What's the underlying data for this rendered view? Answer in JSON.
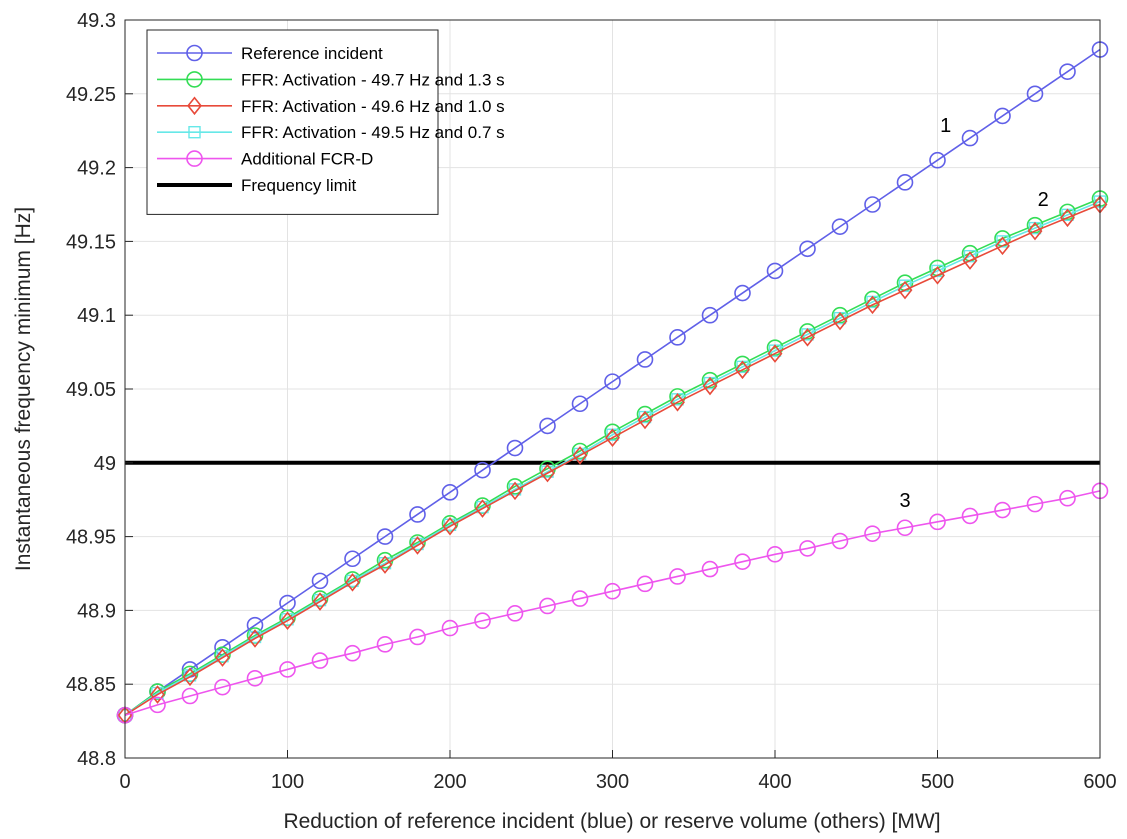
{
  "chart_data": {
    "type": "line",
    "title": "",
    "xlabel": "Reduction of reference incident (blue) or reserve volume (others) [MW]",
    "ylabel": "Instantaneous frequency minimum [Hz]",
    "xlim": [
      0,
      600
    ],
    "ylim": [
      48.8,
      49.3
    ],
    "xticks": [
      0,
      100,
      200,
      300,
      400,
      500,
      600
    ],
    "yticks": [
      48.8,
      48.85,
      48.9,
      48.95,
      49,
      49.05,
      49.1,
      49.15,
      49.2,
      49.25,
      49.3
    ],
    "xtick_labels": [
      "0",
      "100",
      "200",
      "300",
      "400",
      "500",
      "600"
    ],
    "ytick_labels": [
      "48.8",
      "48.85",
      "48.9",
      "48.95",
      "49",
      "49.05",
      "49.1",
      "49.15",
      "49.2",
      "49.25",
      "49.3"
    ],
    "grid": true,
    "legend_position": "top-left",
    "x": [
      0,
      20,
      40,
      60,
      80,
      100,
      120,
      140,
      160,
      180,
      200,
      220,
      240,
      260,
      280,
      300,
      320,
      340,
      360,
      380,
      400,
      420,
      440,
      460,
      480,
      500,
      520,
      540,
      560,
      580,
      600
    ],
    "series": [
      {
        "name": "Reference incident",
        "color": "#6060e8",
        "marker": "circle",
        "values": [
          48.829,
          48.845,
          48.86,
          48.875,
          48.89,
          48.905,
          48.92,
          48.935,
          48.95,
          48.965,
          48.98,
          48.995,
          49.01,
          49.025,
          49.04,
          49.055,
          49.07,
          49.085,
          49.1,
          49.115,
          49.13,
          49.145,
          49.16,
          49.175,
          49.19,
          49.205,
          49.22,
          49.235,
          49.25,
          49.265,
          49.28
        ]
      },
      {
        "name": "FFR: Activation - 49.7 Hz and 1.3 s",
        "color": "#33dd55",
        "marker": "circle",
        "values": [
          48.829,
          48.845,
          48.857,
          48.87,
          48.883,
          48.895,
          48.908,
          48.921,
          48.934,
          48.946,
          48.959,
          48.971,
          48.984,
          48.996,
          49.008,
          49.021,
          49.033,
          49.045,
          49.056,
          49.067,
          49.078,
          49.089,
          49.1,
          49.111,
          49.122,
          49.132,
          49.142,
          49.152,
          49.161,
          49.17,
          49.179
        ]
      },
      {
        "name": "FFR: Activation - 49.6 Hz and 1.0 s",
        "color": "#e84a3a",
        "marker": "diamond",
        "values": [
          48.829,
          48.843,
          48.855,
          48.868,
          48.881,
          48.893,
          48.906,
          48.919,
          48.931,
          48.944,
          48.957,
          48.969,
          48.981,
          48.993,
          49.005,
          49.017,
          49.029,
          49.041,
          49.052,
          49.063,
          49.074,
          49.085,
          49.096,
          49.107,
          49.117,
          49.127,
          49.137,
          49.147,
          49.157,
          49.166,
          49.175
        ]
      },
      {
        "name": "FFR: Activation - 49.5 Hz and 0.7 s",
        "color": "#66e8e8",
        "marker": "square",
        "values": [
          48.829,
          48.844,
          48.856,
          48.869,
          48.882,
          48.894,
          48.907,
          48.92,
          48.932,
          48.945,
          48.958,
          48.97,
          48.982,
          48.994,
          49.006,
          49.019,
          49.031,
          49.043,
          49.054,
          49.065,
          49.076,
          49.087,
          49.098,
          49.109,
          49.12,
          49.13,
          49.14,
          49.15,
          49.159,
          49.168,
          49.177
        ]
      },
      {
        "name": "Additional FCR-D",
        "color": "#ee55ee",
        "marker": "circle",
        "values": [
          48.829,
          48.836,
          48.842,
          48.848,
          48.854,
          48.86,
          48.866,
          48.871,
          48.877,
          48.882,
          48.888,
          48.893,
          48.898,
          48.903,
          48.908,
          48.913,
          48.918,
          48.923,
          48.928,
          48.933,
          48.938,
          48.942,
          48.947,
          48.952,
          48.956,
          48.96,
          48.964,
          48.968,
          48.972,
          48.976,
          48.981
        ]
      }
    ],
    "reference_lines": [
      {
        "name": "Frequency limit",
        "color": "#000000",
        "y": 49
      }
    ],
    "annotations": [
      {
        "text": "1",
        "x": 505,
        "y": 49.224
      },
      {
        "text": "2",
        "x": 565,
        "y": 49.174
      },
      {
        "text": "3",
        "x": 480,
        "y": 48.97
      }
    ]
  }
}
